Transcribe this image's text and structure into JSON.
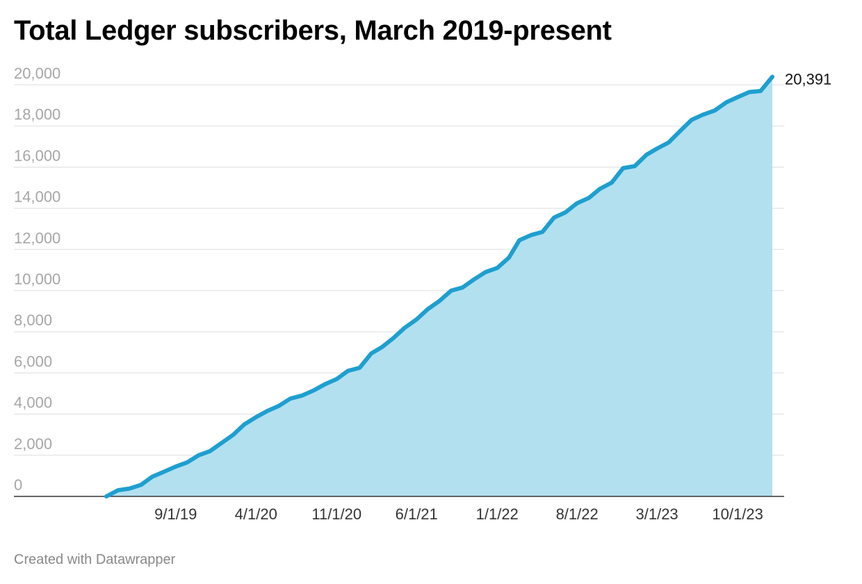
{
  "title": "Total Ledger subscribers, March 2019-present",
  "footer": "Created with Datawrapper",
  "colors": {
    "line": "#1e9fd0",
    "area": "#b3e0ef",
    "grid": "#dddddd",
    "axis_text": "#a6a6a6",
    "baseline": "#333333"
  },
  "chart_data": {
    "type": "area",
    "title": "Total Ledger subscribers, March 2019-present",
    "xlabel": "",
    "ylabel": "",
    "xlim": [
      "2019-03-01",
      "2024-01-01"
    ],
    "ylim": [
      0,
      20000
    ],
    "y_ticks": [
      {
        "value": 0,
        "label": "0"
      },
      {
        "value": 2000,
        "label": "2,000"
      },
      {
        "value": 4000,
        "label": "4,000"
      },
      {
        "value": 6000,
        "label": "6,000"
      },
      {
        "value": 8000,
        "label": "8,000"
      },
      {
        "value": 10000,
        "label": "10,000"
      },
      {
        "value": 12000,
        "label": "12,000"
      },
      {
        "value": 14000,
        "label": "14,000"
      },
      {
        "value": 16000,
        "label": "16,000"
      },
      {
        "value": 18000,
        "label": "18,000"
      },
      {
        "value": 20000,
        "label": "20,000"
      }
    ],
    "x_ticks": [
      {
        "date": "2019-09-01",
        "label": "9/1/19"
      },
      {
        "date": "2020-04-01",
        "label": "4/1/20"
      },
      {
        "date": "2020-11-01",
        "label": "11/1/20"
      },
      {
        "date": "2021-06-01",
        "label": "6/1/21"
      },
      {
        "date": "2022-01-01",
        "label": "1/1/22"
      },
      {
        "date": "2022-08-01",
        "label": "8/1/22"
      },
      {
        "date": "2023-03-01",
        "label": "3/1/23"
      },
      {
        "date": "2023-10-01",
        "label": "10/1/23"
      }
    ],
    "grid": true,
    "end_label": "20,391",
    "series": [
      {
        "name": "",
        "x": [
          "2019-03-01",
          "2019-04-01",
          "2019-05-01",
          "2019-06-01",
          "2019-07-01",
          "2019-08-01",
          "2019-09-01",
          "2019-10-01",
          "2019-11-01",
          "2019-12-01",
          "2020-01-01",
          "2020-02-01",
          "2020-03-01",
          "2020-04-01",
          "2020-05-01",
          "2020-06-01",
          "2020-07-01",
          "2020-08-01",
          "2020-09-01",
          "2020-10-01",
          "2020-11-01",
          "2020-12-01",
          "2021-01-01",
          "2021-02-01",
          "2021-03-01",
          "2021-04-01",
          "2021-05-01",
          "2021-06-01",
          "2021-07-01",
          "2021-08-01",
          "2021-09-01",
          "2021-10-01",
          "2021-11-01",
          "2021-12-01",
          "2022-01-01",
          "2022-02-01",
          "2022-03-01",
          "2022-04-01",
          "2022-05-01",
          "2022-06-01",
          "2022-07-01",
          "2022-08-01",
          "2022-09-01",
          "2022-10-01",
          "2022-11-01",
          "2022-12-01",
          "2023-01-01",
          "2023-02-01",
          "2023-03-01",
          "2023-04-01",
          "2023-05-01",
          "2023-06-01",
          "2023-07-01",
          "2023-08-01",
          "2023-09-01",
          "2023-10-01",
          "2023-11-01",
          "2023-12-01",
          "2024-01-01"
        ],
        "values": [
          0,
          300,
          380,
          560,
          960,
          1200,
          1450,
          1650,
          2000,
          2200,
          2600,
          3000,
          3500,
          3850,
          4150,
          4400,
          4750,
          4900,
          5150,
          5450,
          5700,
          6100,
          6250,
          6950,
          7250,
          7700,
          8200,
          8600,
          9100,
          9500,
          10000,
          10150,
          10550,
          10900,
          11100,
          11600,
          12450,
          12700,
          12850,
          13550,
          13800,
          14250,
          14500,
          14950,
          15250,
          15950,
          16050,
          16600,
          16900,
          17200,
          17750,
          18300,
          18550,
          18750,
          19150,
          19400,
          19650,
          19700,
          20391
        ]
      }
    ]
  }
}
